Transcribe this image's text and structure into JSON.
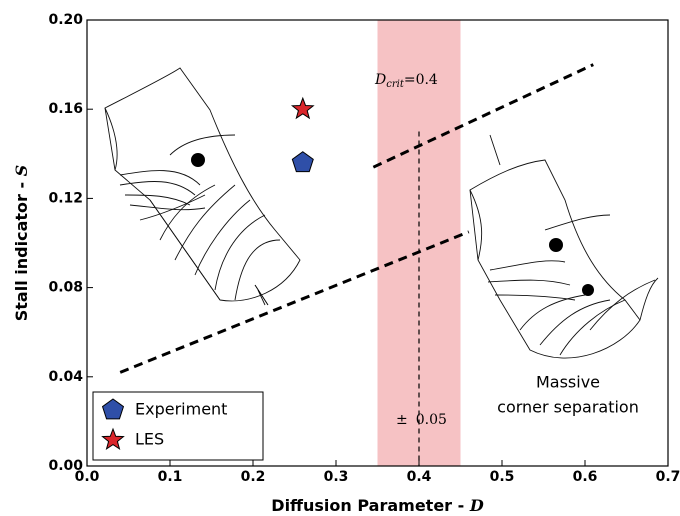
{
  "chart_data": {
    "type": "scatter",
    "x_label": "Diffusion Parameter - ",
    "x_label_symbol": "D",
    "y_label": "Stall indicator - ",
    "y_label_symbol": "S",
    "xlim": [
      0,
      0.7
    ],
    "ylim": [
      0,
      0.2
    ],
    "xticks": [
      {
        "value": 0,
        "label": "0.0"
      },
      0.1,
      0.2,
      0.3,
      0.4,
      0.5,
      0.6,
      0.7
    ],
    "yticks": [
      {
        "value": 0,
        "label": "0.00"
      },
      {
        "value": 0.04,
        "label": "0.04"
      },
      {
        "value": 0.08,
        "label": "0.08"
      },
      {
        "value": 0.12,
        "label": "0.12"
      },
      {
        "value": 0.16,
        "label": "0.16"
      },
      {
        "value": 0.2,
        "label": "0.20"
      }
    ],
    "series": [
      {
        "name": "Experiment",
        "color": "#2f4fa8",
        "marker": "pentagon",
        "x": [
          0.26
        ],
        "values": [
          0.136
        ]
      },
      {
        "name": "LES",
        "color": "#d9262b",
        "marker": "star",
        "x": [
          0.26
        ],
        "values": [
          0.16
        ]
      }
    ],
    "band": {
      "center": 0.4,
      "half_width": 0.05,
      "color": "#f6c2c4",
      "line_top": 0.15
    },
    "critical_symbol": "D",
    "critical_subscript": "crit",
    "center_prefix": "=",
    "width_prefix": "±",
    "lines": [
      {
        "x": [
          0.345,
          0.61
        ],
        "y": [
          0.134,
          0.18
        ]
      },
      {
        "x": [
          0.04,
          0.46
        ],
        "y": [
          0.042,
          0.105
        ]
      }
    ],
    "annotation": [
      "Massive",
      "corner separation"
    ],
    "legend": "lower left"
  }
}
